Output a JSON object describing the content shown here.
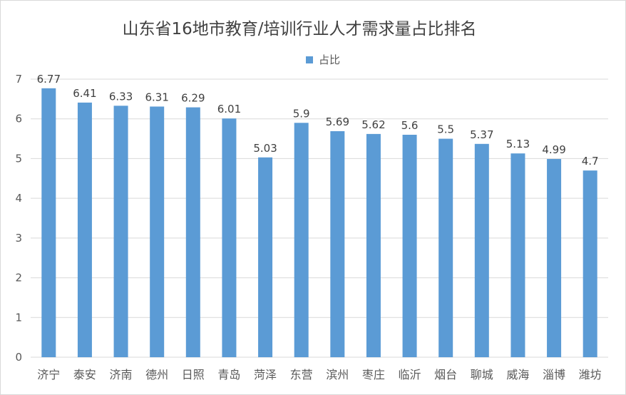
{
  "chart_data": {
    "type": "bar",
    "title": "山东省16地市教育/培训行业人才需求量占比排名",
    "legend": "占比",
    "legend_position": "top",
    "grid": true,
    "color": "#5B9BD5",
    "ylim": [
      0,
      7
    ],
    "yticks": [
      0,
      1,
      2,
      3,
      4,
      5,
      6,
      7
    ],
    "categories": [
      "济宁",
      "泰安",
      "济南",
      "德州",
      "日照",
      "青岛",
      "菏泽",
      "东营",
      "滨州",
      "枣庄",
      "临沂",
      "烟台",
      "聊城",
      "威海",
      "淄博",
      "潍坊"
    ],
    "values": [
      6.77,
      6.41,
      6.33,
      6.31,
      6.29,
      6.01,
      5.03,
      5.9,
      5.69,
      5.62,
      5.6,
      5.5,
      5.37,
      5.13,
      4.99,
      4.7
    ],
    "value_labels": [
      "6.77",
      "6.41",
      "6.33",
      "6.31",
      "6.29",
      "6.01",
      "5.03",
      "5.9",
      "5.69",
      "5.62",
      "5.6",
      "5.5",
      "5.37",
      "5.13",
      "4.99",
      "4.7"
    ]
  }
}
